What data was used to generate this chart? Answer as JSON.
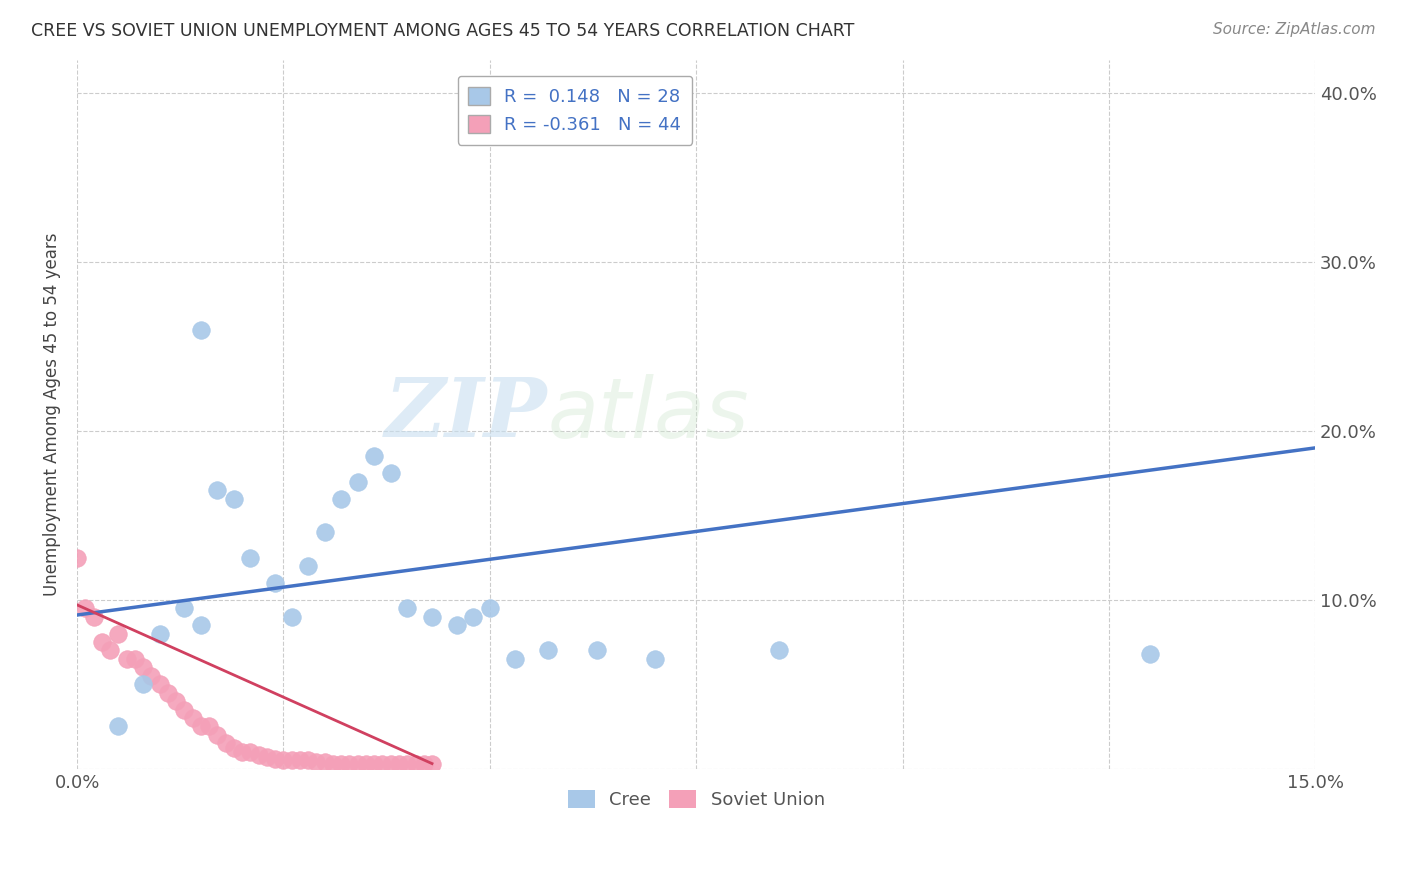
{
  "title": "CREE VS SOVIET UNION UNEMPLOYMENT AMONG AGES 45 TO 54 YEARS CORRELATION CHART",
  "source": "Source: ZipAtlas.com",
  "ylabel": "Unemployment Among Ages 45 to 54 years",
  "xlim": [
    0.0,
    0.15
  ],
  "ylim": [
    0.0,
    0.42
  ],
  "cree_color": "#a8c8e8",
  "soviet_color": "#f4a0b8",
  "cree_line_color": "#4472c4",
  "soviet_line_color": "#d04060",
  "R_cree": 0.148,
  "N_cree": 28,
  "R_soviet": -0.361,
  "N_soviet": 44,
  "cree_x": [
    0.005,
    0.008,
    0.01,
    0.013,
    0.015,
    0.017,
    0.019,
    0.021,
    0.024,
    0.026,
    0.028,
    0.03,
    0.032,
    0.034,
    0.036,
    0.038,
    0.04,
    0.043,
    0.046,
    0.048,
    0.05,
    0.053,
    0.057,
    0.063,
    0.07,
    0.085,
    0.13,
    0.015
  ],
  "cree_y": [
    0.025,
    0.05,
    0.08,
    0.095,
    0.085,
    0.165,
    0.16,
    0.125,
    0.11,
    0.09,
    0.12,
    0.14,
    0.16,
    0.17,
    0.185,
    0.175,
    0.095,
    0.09,
    0.085,
    0.09,
    0.095,
    0.065,
    0.07,
    0.07,
    0.065,
    0.07,
    0.068,
    0.26
  ],
  "soviet_x": [
    0.0,
    0.001,
    0.002,
    0.003,
    0.004,
    0.005,
    0.006,
    0.007,
    0.008,
    0.009,
    0.01,
    0.011,
    0.012,
    0.013,
    0.014,
    0.015,
    0.016,
    0.017,
    0.018,
    0.019,
    0.02,
    0.021,
    0.022,
    0.023,
    0.024,
    0.025,
    0.026,
    0.027,
    0.028,
    0.029,
    0.03,
    0.031,
    0.032,
    0.033,
    0.034,
    0.035,
    0.036,
    0.037,
    0.038,
    0.039,
    0.04,
    0.041,
    0.042,
    0.043
  ],
  "soviet_y": [
    0.125,
    0.095,
    0.09,
    0.075,
    0.07,
    0.08,
    0.065,
    0.065,
    0.06,
    0.055,
    0.05,
    0.045,
    0.04,
    0.035,
    0.03,
    0.025,
    0.025,
    0.02,
    0.015,
    0.012,
    0.01,
    0.01,
    0.008,
    0.007,
    0.006,
    0.005,
    0.005,
    0.005,
    0.005,
    0.004,
    0.004,
    0.003,
    0.003,
    0.003,
    0.003,
    0.003,
    0.003,
    0.003,
    0.003,
    0.003,
    0.003,
    0.003,
    0.003,
    0.003
  ],
  "watermark_zip": "ZIP",
  "watermark_atlas": "atlas",
  "background_color": "#ffffff",
  "grid_color": "#cccccc"
}
